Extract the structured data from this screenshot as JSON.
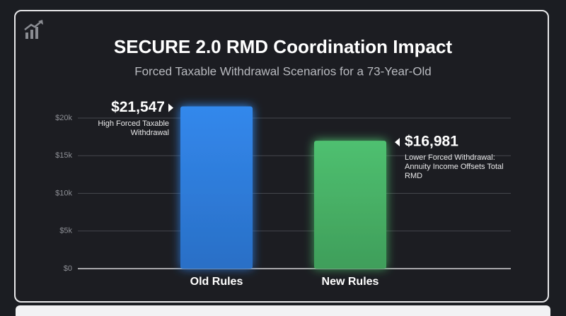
{
  "chart_data": {
    "type": "bar",
    "title": "SECURE 2.0 RMD Coordination Impact",
    "subtitle": "Forced Taxable Withdrawal Scenarios for a 73-Year-Old",
    "categories": [
      "Old Rules",
      "New Rules"
    ],
    "values": [
      21547,
      16981
    ],
    "value_labels": [
      "$21,547",
      "$16,981"
    ],
    "annotations": [
      "High Forced Taxable Withdrawal",
      "Lower Forced Withdrawal: Annuity Income Offsets Total RMD"
    ],
    "colors": [
      "#2f7fe0",
      "#4cb86a"
    ],
    "ylim": [
      0,
      20000
    ],
    "yticks": [
      {
        "value": 0,
        "label": "$0"
      },
      {
        "value": 5000,
        "label": "$5k"
      },
      {
        "value": 10000,
        "label": "$10k"
      },
      {
        "value": 15000,
        "label": "$15k"
      },
      {
        "value": 20000,
        "label": "$20k"
      }
    ],
    "grid": true
  }
}
